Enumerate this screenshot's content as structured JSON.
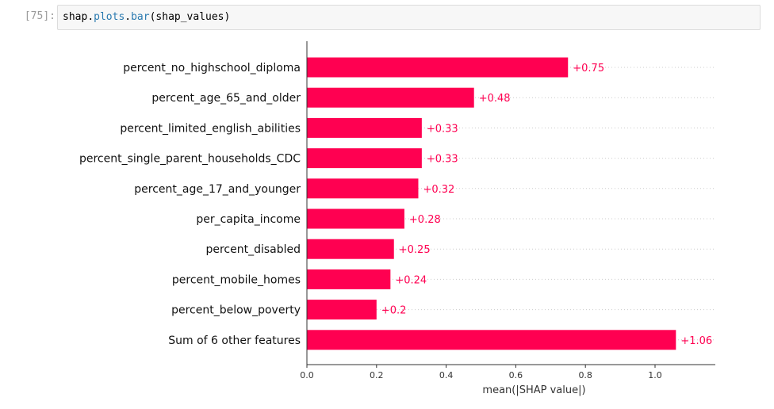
{
  "cell": {
    "prompt": "[75]:",
    "code": {
      "object": "shap",
      "dot1": ".",
      "module": "plots",
      "dot2": ".",
      "func": "bar",
      "args": "(shap_values)"
    }
  },
  "chart_data": {
    "type": "bar",
    "orientation": "horizontal",
    "categories": [
      "percent_no_highschool_diploma",
      "percent_age_65_and_older",
      "percent_limited_english_abilities",
      "percent_single_parent_households_CDC",
      "percent_age_17_and_younger",
      "per_capita_income",
      "percent_disabled",
      "percent_mobile_homes",
      "percent_below_poverty",
      "Sum of 6 other features"
    ],
    "values": [
      0.75,
      0.48,
      0.33,
      0.33,
      0.32,
      0.28,
      0.25,
      0.24,
      0.2,
      1.06
    ],
    "value_labels": [
      "+0.75",
      "+0.48",
      "+0.33",
      "+0.33",
      "+0.32",
      "+0.28",
      "+0.25",
      "+0.24",
      "+0.2",
      "+1.06"
    ],
    "xlabel": "mean(|SHAP value|)",
    "ylabel": "",
    "title": "",
    "xlim": [
      0,
      1.17
    ],
    "xticks": [
      0.0,
      0.2,
      0.4,
      0.6,
      0.8,
      1.0
    ],
    "xtick_labels": [
      "0.0",
      "0.2",
      "0.4",
      "0.6",
      "0.8",
      "1.0"
    ],
    "grid": "dotted horizontal lines per row",
    "colors": {
      "bar": "#ff0051",
      "label": "#ff0051",
      "axis": "#333333",
      "grid": "#cccccc"
    }
  }
}
